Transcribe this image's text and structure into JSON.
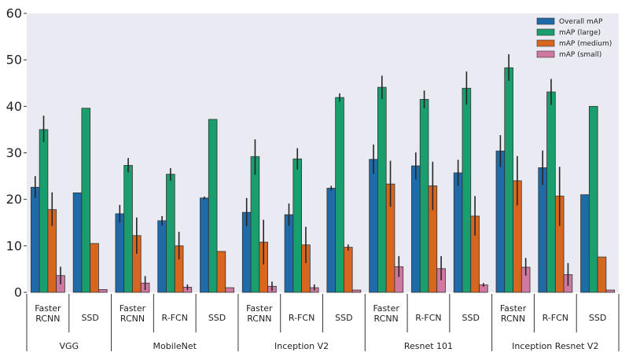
{
  "chart_data": {
    "type": "bar",
    "title": "",
    "xlabel": "",
    "ylabel": "",
    "ylim": [
      0,
      60
    ],
    "yticks": [
      0,
      10,
      20,
      30,
      40,
      50,
      60
    ],
    "grid": false,
    "legend_position": "top-right",
    "series": [
      {
        "name": "Overall mAP",
        "color": "#1f6aa8"
      },
      {
        "name": "mAP (large)",
        "color": "#1a9e6e"
      },
      {
        "name": "mAP (medium)",
        "color": "#d9661f"
      },
      {
        "name": "mAP (small)",
        "color": "#cf79a1"
      }
    ],
    "groups": [
      {
        "name": "VGG",
        "members": [
          {
            "label": [
              "Faster",
              "RCNN"
            ],
            "values": [
              22.6,
              35.0,
              17.8,
              3.6
            ],
            "errors": [
              [
                20.3,
                25.0
              ],
              [
                32.3,
                38.0
              ],
              [
                14.3,
                21.5
              ],
              [
                1.7,
                5.5
              ]
            ]
          },
          {
            "label": [
              "SSD"
            ],
            "values": [
              21.4,
              39.6,
              10.5,
              0.6
            ],
            "errors": [
              null,
              null,
              null,
              null
            ]
          }
        ]
      },
      {
        "name": "MobileNet",
        "members": [
          {
            "label": [
              "Faster",
              "RCNN"
            ],
            "values": [
              16.9,
              27.3,
              12.2,
              2.0
            ],
            "errors": [
              [
                15.0,
                18.8
              ],
              [
                25.8,
                28.9
              ],
              [
                8.3,
                16.1
              ],
              [
                0.5,
                3.5
              ]
            ]
          },
          {
            "label": [
              "R-FCN"
            ],
            "values": [
              15.4,
              25.4,
              10.0,
              1.1
            ],
            "errors": [
              [
                14.4,
                16.4
              ],
              [
                24.0,
                26.7
              ],
              [
                7.1,
                13.0
              ],
              [
                0.5,
                1.7
              ]
            ]
          },
          {
            "label": [
              "SSD"
            ],
            "values": [
              20.3,
              37.2,
              8.8,
              1.0
            ],
            "errors": [
              [
                20.0,
                20.6
              ],
              null,
              null,
              null
            ]
          }
        ]
      },
      {
        "name": "Inception V2",
        "members": [
          {
            "label": [
              "Faster",
              "RCNN"
            ],
            "values": [
              17.2,
              29.2,
              10.8,
              1.3
            ],
            "errors": [
              [
                14.2,
                20.3
              ],
              [
                25.3,
                32.9
              ],
              [
                6.0,
                15.6
              ],
              [
                0.3,
                2.3
              ]
            ]
          },
          {
            "label": [
              "R-FCN"
            ],
            "values": [
              16.7,
              28.7,
              10.2,
              1.0
            ],
            "errors": [
              [
                14.3,
                19.1
              ],
              [
                26.4,
                31.0
              ],
              [
                6.3,
                14.1
              ],
              [
                0.4,
                1.7
              ]
            ]
          },
          {
            "label": [
              "SSD"
            ],
            "values": [
              22.4,
              41.9,
              9.7,
              0.5
            ],
            "errors": [
              [
                21.9,
                22.9
              ],
              [
                41.0,
                42.8
              ],
              [
                9.0,
                10.3
              ],
              null
            ]
          }
        ]
      },
      {
        "name": "Resnet 101",
        "members": [
          {
            "label": [
              "Faster",
              "RCNN"
            ],
            "values": [
              28.6,
              44.1,
              23.3,
              5.5
            ],
            "errors": [
              [
                25.5,
                31.8
              ],
              [
                41.6,
                46.6
              ],
              [
                18.4,
                28.3
              ],
              [
                3.3,
                7.8
              ]
            ]
          },
          {
            "label": [
              "R-FCN"
            ],
            "values": [
              27.2,
              41.5,
              22.9,
              5.1
            ],
            "errors": [
              [
                24.3,
                30.1
              ],
              [
                39.6,
                43.4
              ],
              [
                17.7,
                28.1
              ],
              [
                2.6,
                7.8
              ]
            ]
          },
          {
            "label": [
              "SSD"
            ],
            "values": [
              25.7,
              43.9,
              16.4,
              1.6
            ],
            "errors": [
              [
                22.9,
                28.5
              ],
              [
                40.4,
                47.5
              ],
              [
                12.2,
                20.7
              ],
              [
                1.2,
                2.0
              ]
            ]
          }
        ]
      },
      {
        "name": "Inception Resnet V2",
        "members": [
          {
            "label": [
              "Faster",
              "RCNN"
            ],
            "values": [
              30.4,
              48.3,
              24.0,
              5.4
            ],
            "errors": [
              [
                27.0,
                33.8
              ],
              [
                45.5,
                51.2
              ],
              [
                18.7,
                29.3
              ],
              [
                3.6,
                7.4
              ]
            ]
          },
          {
            "label": [
              "R-FCN"
            ],
            "values": [
              26.8,
              43.1,
              20.7,
              3.8
            ],
            "errors": [
              [
                23.1,
                30.5
              ],
              [
                40.3,
                45.9
              ],
              [
                14.3,
                27.0
              ],
              [
                1.4,
                6.3
              ]
            ]
          },
          {
            "label": [
              "SSD"
            ],
            "values": [
              21.0,
              40.0,
              7.6,
              0.5
            ],
            "errors": [
              null,
              null,
              null,
              null
            ]
          }
        ]
      }
    ]
  }
}
